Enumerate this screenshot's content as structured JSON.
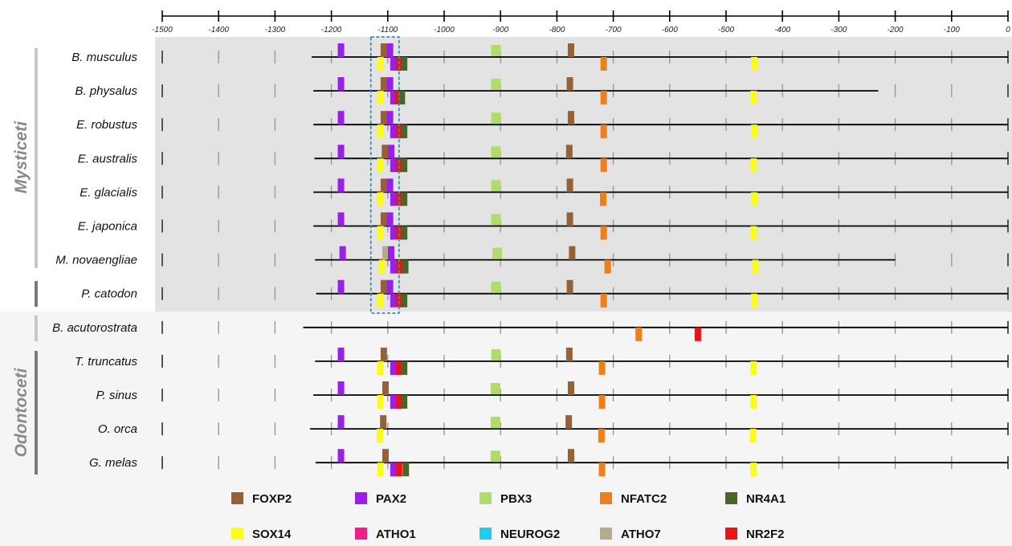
{
  "axis": {
    "ticks": [
      -1500,
      -1400,
      -1300,
      -1200,
      -1100,
      -1000,
      -900,
      -800,
      -700,
      -600,
      -500,
      -400,
      -300,
      -200,
      -100,
      0
    ],
    "tick_labels": [
      "-1500",
      "-1400",
      "-1300",
      "-1200",
      "-1100",
      "-1000",
      "-900",
      "-800",
      "-700",
      "-600",
      "-500",
      "-400",
      "-300",
      "-200",
      "-100",
      "0"
    ]
  },
  "groups": [
    "Mysticeti",
    "Odontoceti"
  ],
  "colors": {
    "FOXP2": "#946238",
    "PAX2": "#9a1fe8",
    "PBX3": "#b0dd6a",
    "NFATC2": "#ef7f1a",
    "NR4A1": "#4b6528",
    "SOX14": "#fbfb1e",
    "ATHO1": "#ee1f8c",
    "NEUROG2": "#1fcdee",
    "ATHO7": "#b8aa8d",
    "NR2F2": "#ee1313",
    "panel_bg": "#e3e3e3",
    "lower_bg": "#f5f5f5",
    "box_border": "#3a8fa8"
  },
  "legend": [
    {
      "gene": "FOXP2",
      "label": "FOXP2"
    },
    {
      "gene": "PAX2",
      "label": "PAX2"
    },
    {
      "gene": "PBX3",
      "label": "PBX3"
    },
    {
      "gene": "NFATC2",
      "label": "NFATC2"
    },
    {
      "gene": "NR4A1",
      "label": "NR4A1"
    },
    {
      "gene": "SOX14",
      "label": "SOX14"
    },
    {
      "gene": "ATHO1",
      "label": "ATHO1"
    },
    {
      "gene": "NEUROG2",
      "label": "NEUROG2"
    },
    {
      "gene": "ATHO7",
      "label": "ATHO7"
    },
    {
      "gene": "NR2F2",
      "label": "NR2F2"
    }
  ],
  "chart_data": {
    "type": "diagram",
    "x_range": [
      -1500,
      0
    ],
    "highlight_window": [
      -1130,
      -1080
    ],
    "species": [
      {
        "name": "B. musculus",
        "group": "Mysticeti",
        "seq_start": -1235,
        "seq_end": 0,
        "ticks_from": -1500,
        "sites": [
          {
            "gene": "PAX2",
            "pos": -1183,
            "strand": "+"
          },
          {
            "gene": "FOXP2",
            "pos": -1107,
            "strand": "+"
          },
          {
            "gene": "PAX2",
            "pos": -1096,
            "strand": "+"
          },
          {
            "gene": "SOX14",
            "pos": -1113,
            "strand": "-"
          },
          {
            "gene": "PAX2",
            "pos": -1090,
            "strand": "-"
          },
          {
            "gene": "NR2F2",
            "pos": -1080,
            "strand": "-"
          },
          {
            "gene": "NR4A1",
            "pos": -1071,
            "strand": "-"
          },
          {
            "gene": "PBX3",
            "pos": -908,
            "strand": "+"
          },
          {
            "gene": "FOXP2",
            "pos": -775,
            "strand": "+"
          },
          {
            "gene": "NFATC2",
            "pos": -717,
            "strand": "-"
          },
          {
            "gene": "SOX14",
            "pos": -450,
            "strand": "-"
          }
        ]
      },
      {
        "name": "B. physalus",
        "group": "Mysticeti",
        "seq_start": -1232,
        "seq_end": -230,
        "ticks_from": -1500,
        "sites": [
          {
            "gene": "PAX2",
            "pos": -1183,
            "strand": "+"
          },
          {
            "gene": "FOXP2",
            "pos": -1107,
            "strand": "+"
          },
          {
            "gene": "PAX2",
            "pos": -1096,
            "strand": "+"
          },
          {
            "gene": "SOX14",
            "pos": -1113,
            "strand": "-"
          },
          {
            "gene": "PAX2",
            "pos": -1090,
            "strand": "-"
          },
          {
            "gene": "NR2F2",
            "pos": -1082,
            "strand": "-"
          },
          {
            "gene": "NR4A1",
            "pos": -1075,
            "strand": "-"
          },
          {
            "gene": "PBX3",
            "pos": -908,
            "strand": "+"
          },
          {
            "gene": "FOXP2",
            "pos": -777,
            "strand": "+"
          },
          {
            "gene": "NFATC2",
            "pos": -717,
            "strand": "-"
          },
          {
            "gene": "SOX14",
            "pos": -451,
            "strand": "-"
          }
        ]
      },
      {
        "name": "E. robustus",
        "group": "Mysticeti",
        "seq_start": -1232,
        "seq_end": 0,
        "ticks_from": -1500,
        "sites": [
          {
            "gene": "PAX2",
            "pos": -1183,
            "strand": "+"
          },
          {
            "gene": "FOXP2",
            "pos": -1107,
            "strand": "+"
          },
          {
            "gene": "PAX2",
            "pos": -1096,
            "strand": "+"
          },
          {
            "gene": "SOX14",
            "pos": -1113,
            "strand": "-"
          },
          {
            "gene": "PAX2",
            "pos": -1090,
            "strand": "-"
          },
          {
            "gene": "NR2F2",
            "pos": -1080,
            "strand": "-"
          },
          {
            "gene": "NR4A1",
            "pos": -1071,
            "strand": "-"
          },
          {
            "gene": "PBX3",
            "pos": -908,
            "strand": "+"
          },
          {
            "gene": "FOXP2",
            "pos": -775,
            "strand": "+"
          },
          {
            "gene": "NFATC2",
            "pos": -717,
            "strand": "-"
          },
          {
            "gene": "SOX14",
            "pos": -450,
            "strand": "-"
          }
        ]
      },
      {
        "name": "E. australis",
        "group": "Mysticeti",
        "seq_start": -1230,
        "seq_end": 0,
        "ticks_from": -1500,
        "sites": [
          {
            "gene": "PAX2",
            "pos": -1183,
            "strand": "+"
          },
          {
            "gene": "FOXP2",
            "pos": -1105,
            "strand": "+"
          },
          {
            "gene": "PAX2",
            "pos": -1094,
            "strand": "+"
          },
          {
            "gene": "SOX14",
            "pos": -1113,
            "strand": "-"
          },
          {
            "gene": "PAX2",
            "pos": -1090,
            "strand": "-"
          },
          {
            "gene": "NR2F2",
            "pos": -1080,
            "strand": "-"
          },
          {
            "gene": "NR4A1",
            "pos": -1071,
            "strand": "-"
          },
          {
            "gene": "PBX3",
            "pos": -908,
            "strand": "+"
          },
          {
            "gene": "FOXP2",
            "pos": -778,
            "strand": "+"
          },
          {
            "gene": "NFATC2",
            "pos": -717,
            "strand": "-"
          },
          {
            "gene": "SOX14",
            "pos": -451,
            "strand": "-"
          }
        ]
      },
      {
        "name": "E. glacialis",
        "group": "Mysticeti",
        "seq_start": -1232,
        "seq_end": 0,
        "ticks_from": -1500,
        "sites": [
          {
            "gene": "PAX2",
            "pos": -1183,
            "strand": "+"
          },
          {
            "gene": "FOXP2",
            "pos": -1107,
            "strand": "+"
          },
          {
            "gene": "PAX2",
            "pos": -1096,
            "strand": "+"
          },
          {
            "gene": "SOX14",
            "pos": -1113,
            "strand": "-"
          },
          {
            "gene": "PAX2",
            "pos": -1090,
            "strand": "-"
          },
          {
            "gene": "NR2F2",
            "pos": -1080,
            "strand": "-"
          },
          {
            "gene": "NR4A1",
            "pos": -1071,
            "strand": "-"
          },
          {
            "gene": "PBX3",
            "pos": -908,
            "strand": "+"
          },
          {
            "gene": "FOXP2",
            "pos": -777,
            "strand": "+"
          },
          {
            "gene": "NFATC2",
            "pos": -718,
            "strand": "-"
          },
          {
            "gene": "SOX14",
            "pos": -450,
            "strand": "-"
          }
        ]
      },
      {
        "name": "E. japonica",
        "group": "Mysticeti",
        "seq_start": -1232,
        "seq_end": 0,
        "ticks_from": -1500,
        "sites": [
          {
            "gene": "PAX2",
            "pos": -1183,
            "strand": "+"
          },
          {
            "gene": "FOXP2",
            "pos": -1107,
            "strand": "+"
          },
          {
            "gene": "PAX2",
            "pos": -1096,
            "strand": "+"
          },
          {
            "gene": "SOX14",
            "pos": -1113,
            "strand": "-"
          },
          {
            "gene": "PAX2",
            "pos": -1090,
            "strand": "-"
          },
          {
            "gene": "NR2F2",
            "pos": -1080,
            "strand": "-"
          },
          {
            "gene": "NR4A1",
            "pos": -1071,
            "strand": "-"
          },
          {
            "gene": "PBX3",
            "pos": -908,
            "strand": "+"
          },
          {
            "gene": "FOXP2",
            "pos": -777,
            "strand": "+"
          },
          {
            "gene": "NFATC2",
            "pos": -717,
            "strand": "-"
          },
          {
            "gene": "SOX14",
            "pos": -451,
            "strand": "-"
          }
        ]
      },
      {
        "name": "M. novaengliae",
        "group": "Mysticeti",
        "seq_start": -1229,
        "seq_end": -200,
        "ticks_from": -1500,
        "sites": [
          {
            "gene": "PAX2",
            "pos": -1180,
            "strand": "+"
          },
          {
            "gene": "ATHO7",
            "pos": -1104,
            "strand": "+"
          },
          {
            "gene": "PAX2",
            "pos": -1094,
            "strand": "+"
          },
          {
            "gene": "SOX14",
            "pos": -1110,
            "strand": "-"
          },
          {
            "gene": "PAX2",
            "pos": -1090,
            "strand": "-"
          },
          {
            "gene": "NR2F2",
            "pos": -1079,
            "strand": "-"
          },
          {
            "gene": "NR4A1",
            "pos": -1069,
            "strand": "-"
          },
          {
            "gene": "PBX3",
            "pos": -906,
            "strand": "+"
          },
          {
            "gene": "FOXP2",
            "pos": -773,
            "strand": "+"
          },
          {
            "gene": "NFATC2",
            "pos": -710,
            "strand": "-"
          },
          {
            "gene": "SOX14",
            "pos": -448,
            "strand": "-"
          }
        ]
      },
      {
        "name": "P. catodon",
        "group": "Mysticeti",
        "seq_start": -1227,
        "seq_end": 0,
        "ticks_from": -1500,
        "sites": [
          {
            "gene": "PAX2",
            "pos": -1183,
            "strand": "+"
          },
          {
            "gene": "FOXP2",
            "pos": -1107,
            "strand": "+"
          },
          {
            "gene": "PAX2",
            "pos": -1096,
            "strand": "+"
          },
          {
            "gene": "SOX14",
            "pos": -1113,
            "strand": "-"
          },
          {
            "gene": "PAX2",
            "pos": -1090,
            "strand": "-"
          },
          {
            "gene": "NR2F2",
            "pos": -1080,
            "strand": "-"
          },
          {
            "gene": "NR4A1",
            "pos": -1071,
            "strand": "-"
          },
          {
            "gene": "PBX3",
            "pos": -908,
            "strand": "+"
          },
          {
            "gene": "FOXP2",
            "pos": -777,
            "strand": "+"
          },
          {
            "gene": "NFATC2",
            "pos": -717,
            "strand": "-"
          },
          {
            "gene": "SOX14",
            "pos": -450,
            "strand": "-"
          }
        ]
      },
      {
        "name": "B. acutorostrata",
        "group": "",
        "seq_start": -1250,
        "seq_end": 0,
        "ticks_from": -1500,
        "sites": [
          {
            "gene": "NFATC2",
            "pos": -655,
            "strand": "-"
          },
          {
            "gene": "NR2F2",
            "pos": -550,
            "strand": "-"
          }
        ]
      },
      {
        "name": "T. truncatus",
        "group": "Odontoceti",
        "seq_start": -1229,
        "seq_end": 0,
        "ticks_from": -1500,
        "sites": [
          {
            "gene": "PAX2",
            "pos": -1183,
            "strand": "+"
          },
          {
            "gene": "FOXP2",
            "pos": -1107,
            "strand": "+"
          },
          {
            "gene": "SOX14",
            "pos": -1113,
            "strand": "-"
          },
          {
            "gene": "PAX2",
            "pos": -1090,
            "strand": "-"
          },
          {
            "gene": "NR2F2",
            "pos": -1080,
            "strand": "-"
          },
          {
            "gene": "NR4A1",
            "pos": -1071,
            "strand": "-"
          },
          {
            "gene": "PBX3",
            "pos": -908,
            "strand": "+"
          },
          {
            "gene": "FOXP2",
            "pos": -778,
            "strand": "+"
          },
          {
            "gene": "NFATC2",
            "pos": -720,
            "strand": "-"
          },
          {
            "gene": "SOX14",
            "pos": -451,
            "strand": "-"
          }
        ]
      },
      {
        "name": "P. sinus",
        "group": "Odontoceti",
        "seq_start": -1232,
        "seq_end": 0,
        "ticks_from": -1500,
        "sites": [
          {
            "gene": "PAX2",
            "pos": -1183,
            "strand": "+"
          },
          {
            "gene": "FOXP2",
            "pos": -1104,
            "strand": "+"
          },
          {
            "gene": "SOX14",
            "pos": -1113,
            "strand": "-"
          },
          {
            "gene": "PAX2",
            "pos": -1090,
            "strand": "-"
          },
          {
            "gene": "NR2F2",
            "pos": -1080,
            "strand": "-"
          },
          {
            "gene": "NR4A1",
            "pos": -1071,
            "strand": "-"
          },
          {
            "gene": "PBX3",
            "pos": -909,
            "strand": "+"
          },
          {
            "gene": "FOXP2",
            "pos": -775,
            "strand": "+"
          },
          {
            "gene": "NFATC2",
            "pos": -720,
            "strand": "-"
          },
          {
            "gene": "SOX14",
            "pos": -451,
            "strand": "-"
          }
        ]
      },
      {
        "name": "O. orca",
        "group": "Odontoceti",
        "seq_start": -1238,
        "seq_end": 0,
        "ticks_from": -1500,
        "sites": [
          {
            "gene": "PAX2",
            "pos": -1183,
            "strand": "+"
          },
          {
            "gene": "FOXP2",
            "pos": -1108,
            "strand": "+"
          },
          {
            "gene": "SOX14",
            "pos": -1114,
            "strand": "-"
          },
          {
            "gene": "PBX3",
            "pos": -909,
            "strand": "+"
          },
          {
            "gene": "FOXP2",
            "pos": -779,
            "strand": "+"
          },
          {
            "gene": "NFATC2",
            "pos": -721,
            "strand": "-"
          },
          {
            "gene": "SOX14",
            "pos": -452,
            "strand": "-"
          }
        ]
      },
      {
        "name": "G. melas",
        "group": "Odontoceti",
        "seq_start": -1228,
        "seq_end": 0,
        "ticks_from": -1500,
        "sites": [
          {
            "gene": "PAX2",
            "pos": -1183,
            "strand": "+"
          },
          {
            "gene": "FOXP2",
            "pos": -1104,
            "strand": "+"
          },
          {
            "gene": "SOX14",
            "pos": -1113,
            "strand": "-"
          },
          {
            "gene": "PAX2",
            "pos": -1090,
            "strand": "-"
          },
          {
            "gene": "NR2F2",
            "pos": -1080,
            "strand": "-"
          },
          {
            "gene": "NR4A1",
            "pos": -1068,
            "strand": "-"
          },
          {
            "gene": "PBX3",
            "pos": -909,
            "strand": "+"
          },
          {
            "gene": "FOXP2",
            "pos": -775,
            "strand": "+"
          },
          {
            "gene": "NFATC2",
            "pos": -720,
            "strand": "-"
          },
          {
            "gene": "SOX14",
            "pos": -451,
            "strand": "-"
          }
        ]
      }
    ]
  }
}
